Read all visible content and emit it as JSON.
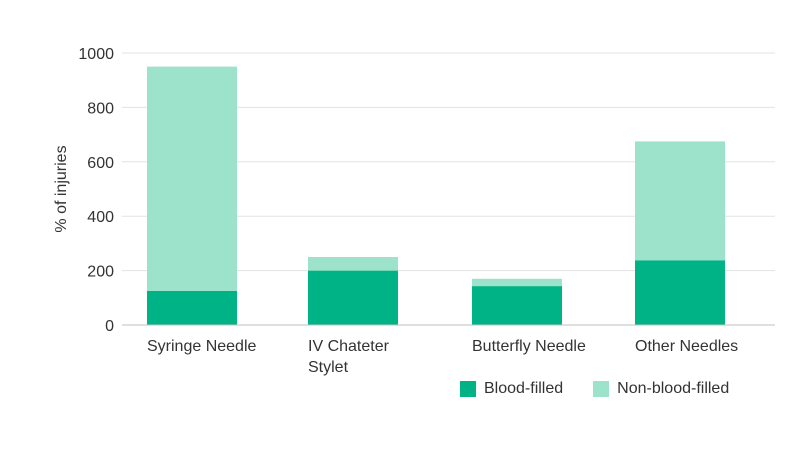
{
  "chart_data": {
    "type": "bar",
    "stacked": true,
    "categories": [
      [
        "Syringe Needle"
      ],
      [
        "IV Chateter",
        "Stylet"
      ],
      [
        "Butterfly Needle"
      ],
      [
        "Other Needles"
      ]
    ],
    "series": [
      {
        "name": "Blood-filled",
        "values": [
          125,
          200,
          143,
          238
        ],
        "color": "#00b386"
      },
      {
        "name": "Non-blood-filled",
        "values": [
          825,
          50,
          27,
          437
        ],
        "color": "#9de3cc"
      }
    ],
    "ylabel": "% of injuries",
    "ylim": [
      0,
      1000
    ],
    "yticks": [
      0,
      200,
      400,
      600,
      800,
      1000
    ],
    "grid": true,
    "legend_position": "bottom-right"
  }
}
